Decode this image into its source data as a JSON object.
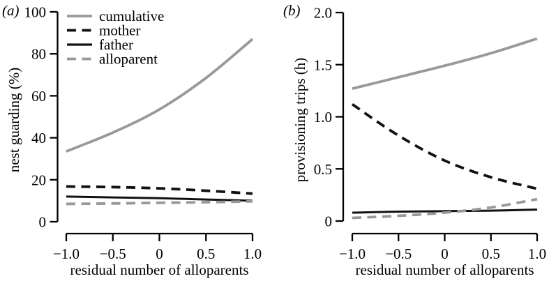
{
  "figure": {
    "background": "#ffffff",
    "axis_color": "#000000",
    "panel_labels": [
      "(a)",
      "(b)"
    ]
  },
  "chart_data": [
    {
      "panel_label": "(a)",
      "type": "line",
      "title": "",
      "xlabel": "residual number of alloparents",
      "ylabel": "nest guarding (%)",
      "xlim": [
        -1.0,
        1.0
      ],
      "ylim": [
        0,
        100
      ],
      "xticks": [
        -1.0,
        -0.5,
        0,
        0.5,
        1.0
      ],
      "xtick_labels": [
        "−1.0",
        "−0.5",
        "0",
        "0.5",
        "1.0"
      ],
      "yticks": [
        0,
        20,
        40,
        60,
        80,
        100
      ],
      "ytick_labels": [
        "0",
        "20",
        "40",
        "60",
        "80",
        "100"
      ],
      "grid": false,
      "x": [
        -1.0,
        -0.5,
        0,
        0.5,
        1.0
      ],
      "series": [
        {
          "name": "cumulative",
          "color": "#999999",
          "dash": "solid",
          "values": [
            33.5,
            42.5,
            53.5,
            68.5,
            87.0
          ]
        },
        {
          "name": "mother",
          "color": "#111111",
          "dash": "dashed",
          "values": [
            16.8,
            16.5,
            15.9,
            14.8,
            13.4
          ]
        },
        {
          "name": "father",
          "color": "#111111",
          "dash": "solid",
          "values": [
            12.0,
            11.6,
            11.2,
            10.6,
            10.0
          ]
        },
        {
          "name": "alloparent",
          "color": "#999999",
          "dash": "dashed",
          "values": [
            8.5,
            8.7,
            9.0,
            9.3,
            9.7
          ]
        }
      ],
      "legend": {
        "position": "top-left",
        "entries": [
          "cumulative",
          "mother",
          "father",
          "alloparent"
        ]
      }
    },
    {
      "panel_label": "(b)",
      "type": "line",
      "title": "",
      "xlabel": "residual number of alloparents",
      "ylabel": "provisioning trips (h)",
      "xlim": [
        -1.0,
        1.0
      ],
      "ylim": [
        0,
        2.0
      ],
      "xticks": [
        -1.0,
        -0.5,
        0,
        0.5,
        1.0
      ],
      "xtick_labels": [
        "−1.0",
        "−0.5",
        "0",
        "0.5",
        "1.0"
      ],
      "yticks": [
        0,
        0.5,
        1.0,
        1.5,
        2.0
      ],
      "ytick_labels": [
        "0",
        "0.5",
        "1.0",
        "1.5",
        "2.0"
      ],
      "grid": false,
      "x": [
        -1.0,
        -0.5,
        0,
        0.5,
        1.0
      ],
      "series": [
        {
          "name": "cumulative",
          "color": "#999999",
          "dash": "solid",
          "values": [
            1.27,
            1.38,
            1.49,
            1.61,
            1.75
          ]
        },
        {
          "name": "mother",
          "color": "#111111",
          "dash": "dashed",
          "values": [
            1.12,
            0.82,
            0.58,
            0.42,
            0.31
          ]
        },
        {
          "name": "father",
          "color": "#111111",
          "dash": "solid",
          "values": [
            0.08,
            0.09,
            0.095,
            0.1,
            0.11
          ]
        },
        {
          "name": "alloparent",
          "color": "#999999",
          "dash": "dashed",
          "values": [
            0.03,
            0.05,
            0.08,
            0.13,
            0.21
          ]
        }
      ],
      "legend": null
    }
  ]
}
